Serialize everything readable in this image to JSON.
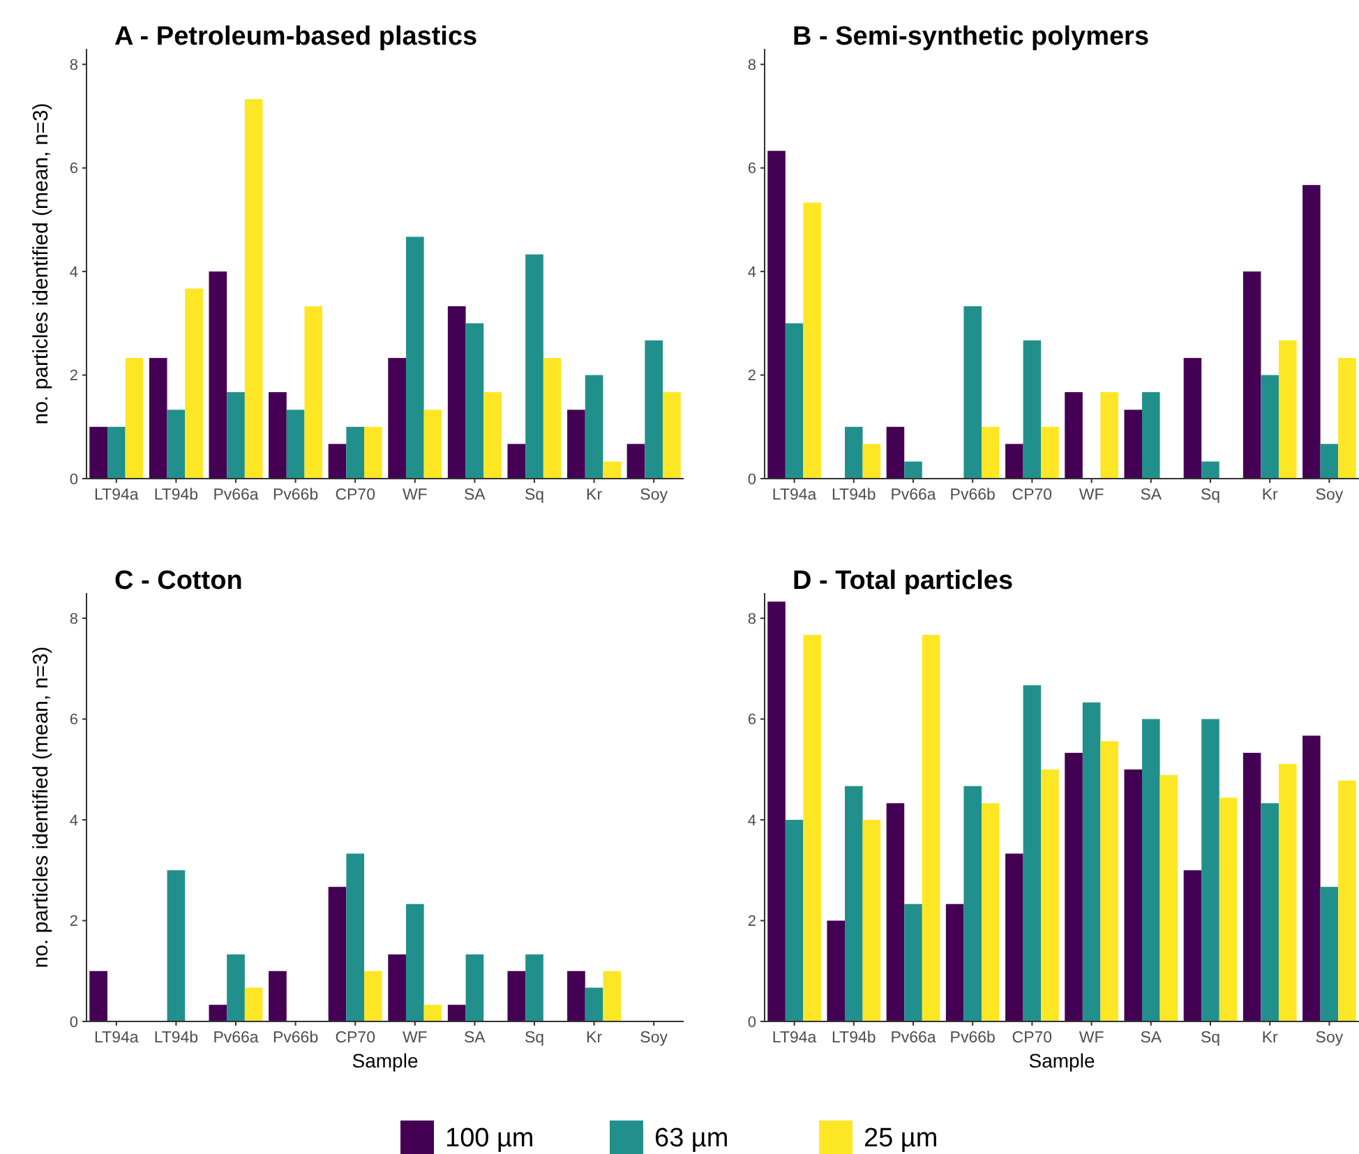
{
  "chart_data": [
    {
      "type": "bar",
      "title": "A - Petroleum-based plastics",
      "ylabel": "no. particles identified (mean, n=3)",
      "categories": [
        "LT94a",
        "LT94b",
        "Pv66a",
        "Pv66b",
        "CP70",
        "WF",
        "SA",
        "Sq",
        "Kr",
        "Soy"
      ],
      "ylim": [
        0,
        8.3
      ],
      "yticks": [
        0,
        2,
        4,
        6,
        8
      ],
      "grid": false,
      "legend": false,
      "series": [
        {
          "color": "#440154",
          "values": [
            1,
            2.33,
            4,
            1.67,
            0.67,
            2.33,
            3.33,
            0.67,
            1.33,
            0.67
          ]
        },
        {
          "color": "#21908c",
          "values": [
            1,
            1.33,
            1.67,
            1.33,
            1,
            4.67,
            3,
            4.33,
            2,
            2.67
          ]
        },
        {
          "color": "#fde725",
          "values": [
            2.33,
            3.67,
            7.33,
            3.33,
            1,
            1.33,
            1.67,
            2.33,
            0.33,
            1.67
          ]
        }
      ]
    },
    {
      "type": "bar",
      "title": "B - Semi-synthetic polymers",
      "categories": [
        "LT94a",
        "LT94b",
        "Pv66a",
        "Pv66b",
        "CP70",
        "WF",
        "SA",
        "Sq",
        "Kr",
        "Soy"
      ],
      "ylim": [
        0,
        8.3
      ],
      "yticks": [
        0,
        2,
        4,
        6,
        8
      ],
      "grid": false,
      "legend": false,
      "series": [
        {
          "color": "#440154",
          "values": [
            6.33,
            0,
            1,
            0,
            0.67,
            1.67,
            1.33,
            2.33,
            4,
            5.67
          ]
        },
        {
          "color": "#21908c",
          "values": [
            3,
            1,
            0.33,
            3.33,
            2.67,
            0,
            1.67,
            0.33,
            2,
            0.67
          ]
        },
        {
          "color": "#fde725",
          "values": [
            5.33,
            0.67,
            0,
            1,
            1,
            1.67,
            0,
            0,
            2.67,
            2.33
          ]
        }
      ]
    },
    {
      "type": "bar",
      "title": "C - Cotton",
      "xlabel": "Sample",
      "ylabel": "no. particles identified (mean, n=3)",
      "categories": [
        "LT94a",
        "LT94b",
        "Pv66a",
        "Pv66b",
        "CP70",
        "WF",
        "SA",
        "Sq",
        "Kr",
        "Soy"
      ],
      "ylim": [
        0,
        8.5
      ],
      "yticks": [
        0,
        2,
        4,
        6,
        8
      ],
      "grid": false,
      "legend": false,
      "series": [
        {
          "color": "#440154",
          "values": [
            1,
            0,
            0.33,
            1,
            2.67,
            1.33,
            0.33,
            1,
            1,
            0
          ]
        },
        {
          "color": "#21908c",
          "values": [
            0,
            3,
            1.33,
            0,
            3.33,
            2.33,
            1.33,
            1.33,
            0.67,
            0
          ]
        },
        {
          "color": "#fde725",
          "values": [
            0,
            0,
            0.67,
            0,
            1,
            0.33,
            0,
            0,
            1,
            0
          ]
        }
      ]
    },
    {
      "type": "bar",
      "title": "D - Total particles",
      "xlabel": "Sample",
      "categories": [
        "LT94a",
        "LT94b",
        "Pv66a",
        "Pv66b",
        "CP70",
        "WF",
        "SA",
        "Sq",
        "Kr",
        "Soy"
      ],
      "ylim": [
        0,
        8.5
      ],
      "yticks": [
        0,
        2,
        4,
        6,
        8
      ],
      "grid": false,
      "legend": "bottom",
      "series": [
        {
          "name": "100 µm",
          "color": "#440154",
          "values": [
            8.33,
            2,
            4.33,
            2.33,
            3.33,
            5.33,
            5,
            3,
            5.33,
            5.67
          ]
        },
        {
          "name": "63 µm",
          "color": "#21908c",
          "values": [
            4,
            4.67,
            2.33,
            4.67,
            6.67,
            6.33,
            6,
            6,
            4.33,
            2.67
          ]
        },
        {
          "name": "25 µm",
          "color": "#fde725",
          "values": [
            7.67,
            4,
            7.67,
            4.33,
            5,
            5.56,
            4.89,
            4.44,
            5.11,
            4.78
          ]
        }
      ]
    }
  ]
}
